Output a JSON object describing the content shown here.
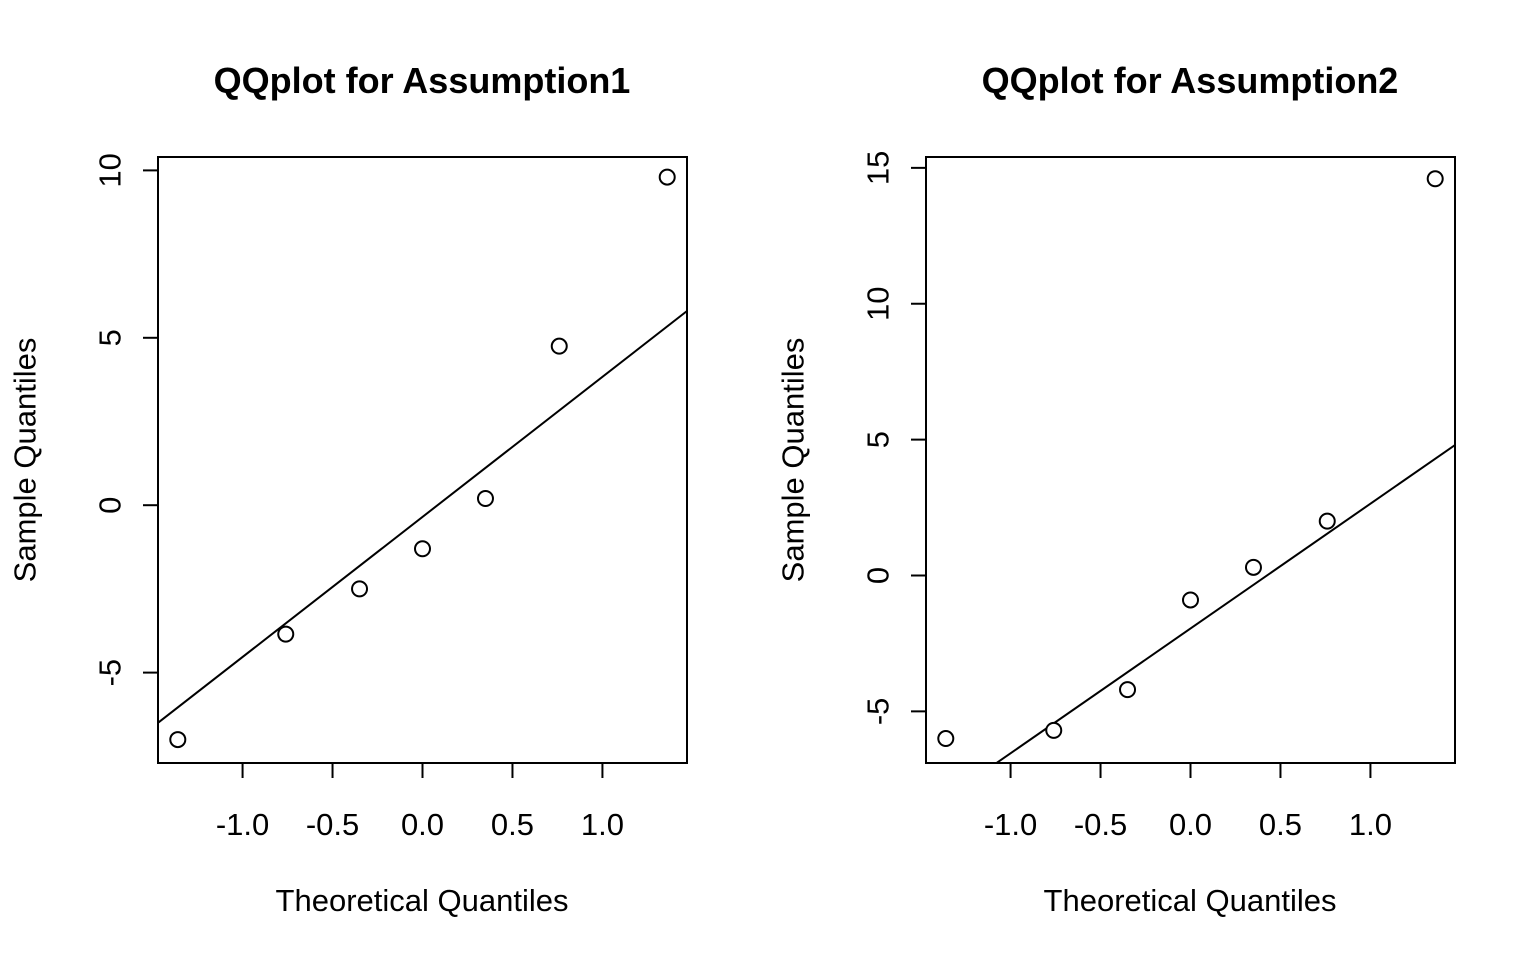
{
  "chart_data": [
    {
      "type": "scatter",
      "title": "QQplot for Assumption1",
      "xlabel": "Theoretical Quantiles",
      "ylabel": "Sample Quantiles",
      "xlim": [
        -1.47,
        1.47
      ],
      "ylim": [
        -7.7,
        10.4
      ],
      "xticks": [
        -1.0,
        -0.5,
        0.0,
        0.5,
        1.0
      ],
      "xtick_labels": [
        "-1.0",
        "-0.5",
        "0.0",
        "0.5",
        "1.0"
      ],
      "yticks": [
        -5,
        0,
        5,
        10
      ],
      "ytick_labels": [
        "-5",
        "0",
        "5",
        "10"
      ],
      "points": {
        "x": [
          -1.36,
          -0.76,
          -0.35,
          0.0,
          0.35,
          0.76,
          1.36
        ],
        "y": [
          -7.0,
          -3.85,
          -2.5,
          -1.3,
          0.2,
          4.75,
          9.8
        ]
      },
      "line": {
        "x": [
          -1.47,
          1.47
        ],
        "y": [
          -6.5,
          5.8
        ]
      }
    },
    {
      "type": "scatter",
      "title": "QQplot for Assumption2",
      "xlabel": "Theoretical Quantiles",
      "ylabel": "Sample Quantiles",
      "xlim": [
        -1.47,
        1.47
      ],
      "ylim": [
        -6.9,
        15.4
      ],
      "xticks": [
        -1.0,
        -0.5,
        0.0,
        0.5,
        1.0
      ],
      "xtick_labels": [
        "-1.0",
        "-0.5",
        "0.0",
        "0.5",
        "1.0"
      ],
      "yticks": [
        -5,
        0,
        5,
        10,
        15
      ],
      "ytick_labels": [
        "-5",
        "0",
        "5",
        "10",
        "15"
      ],
      "points": {
        "x": [
          -1.36,
          -0.76,
          -0.35,
          0.0,
          0.35,
          0.76,
          1.36
        ],
        "y": [
          -6.0,
          -5.7,
          -4.2,
          -0.9,
          0.3,
          2.0,
          14.6
        ]
      },
      "line": {
        "x": [
          -1.47,
          1.47
        ],
        "y": [
          -8.7,
          4.8
        ]
      }
    }
  ]
}
